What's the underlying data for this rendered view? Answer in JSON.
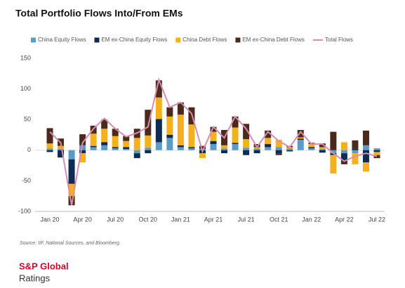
{
  "chart_data": {
    "type": "bar",
    "title": "Total Portfolio Flows Into/From EMs",
    "source": "Source: IIF, National Sources, and Bloomberg.",
    "categories": [
      "Jan 20",
      null,
      null,
      "Apr 20",
      null,
      null,
      "Jul 20",
      null,
      null,
      "Oct 20",
      null,
      null,
      "Jan 21",
      null,
      null,
      "Apr 21",
      null,
      null,
      "Jul 21",
      null,
      null,
      "Oct 21",
      null,
      null,
      "Jan 22",
      null,
      null,
      "Apr 22",
      null,
      null,
      "Jul 22"
    ],
    "series": [
      {
        "name": "China Equity Flows",
        "type": "bar",
        "color": "#5b9bc7",
        "values": [
          3,
          2,
          -15,
          8,
          5,
          8,
          3,
          2,
          -5,
          4,
          13,
          20,
          5,
          3,
          2,
          10,
          3,
          10,
          4,
          3,
          5,
          5,
          3,
          17,
          3,
          2,
          -5,
          -5,
          -5,
          8,
          3
        ]
      },
      {
        "name": "EM ex-China Equity Flows",
        "type": "bar",
        "color": "#0d2c54",
        "values": [
          -3,
          -12,
          -40,
          -5,
          2,
          5,
          2,
          3,
          -8,
          -5,
          38,
          5,
          3,
          2,
          -5,
          5,
          -5,
          2,
          -8,
          -5,
          5,
          -5,
          -2,
          2,
          2,
          -4,
          -3,
          -13,
          3,
          -20,
          -3
        ]
      },
      {
        "name": "China Debt Flows",
        "type": "bar",
        "color": "#f5b01e",
        "values": [
          8,
          5,
          -20,
          -15,
          20,
          22,
          18,
          10,
          20,
          20,
          35,
          30,
          50,
          37,
          -8,
          15,
          5,
          25,
          14,
          2,
          10,
          12,
          2,
          2,
          5,
          3,
          -30,
          13,
          -18,
          -15,
          -5
        ]
      },
      {
        "name": "EM ex-China Debt Flows",
        "type": "bar",
        "color": "#4a2a1a",
        "values": [
          25,
          12,
          -15,
          18,
          13,
          15,
          12,
          8,
          15,
          42,
          28,
          15,
          20,
          28,
          5,
          8,
          25,
          18,
          25,
          5,
          12,
          -3,
          2,
          12,
          2,
          6,
          30,
          -5,
          13,
          24,
          -5
        ]
      },
      {
        "name": "Total Flows",
        "type": "line",
        "color": "#d98cb3",
        "values": [
          30,
          12,
          -90,
          12,
          35,
          52,
          35,
          22,
          28,
          38,
          115,
          70,
          78,
          60,
          -2,
          38,
          20,
          55,
          35,
          5,
          30,
          15,
          5,
          30,
          10,
          10,
          -5,
          -18,
          -10,
          -5,
          -10
        ]
      }
    ],
    "ylim": [
      -100,
      150
    ],
    "yticks": [
      -100,
      -50,
      0,
      50,
      100,
      150
    ],
    "grid": false
  },
  "footer": {
    "company": "S&P Global",
    "division": "Ratings"
  }
}
